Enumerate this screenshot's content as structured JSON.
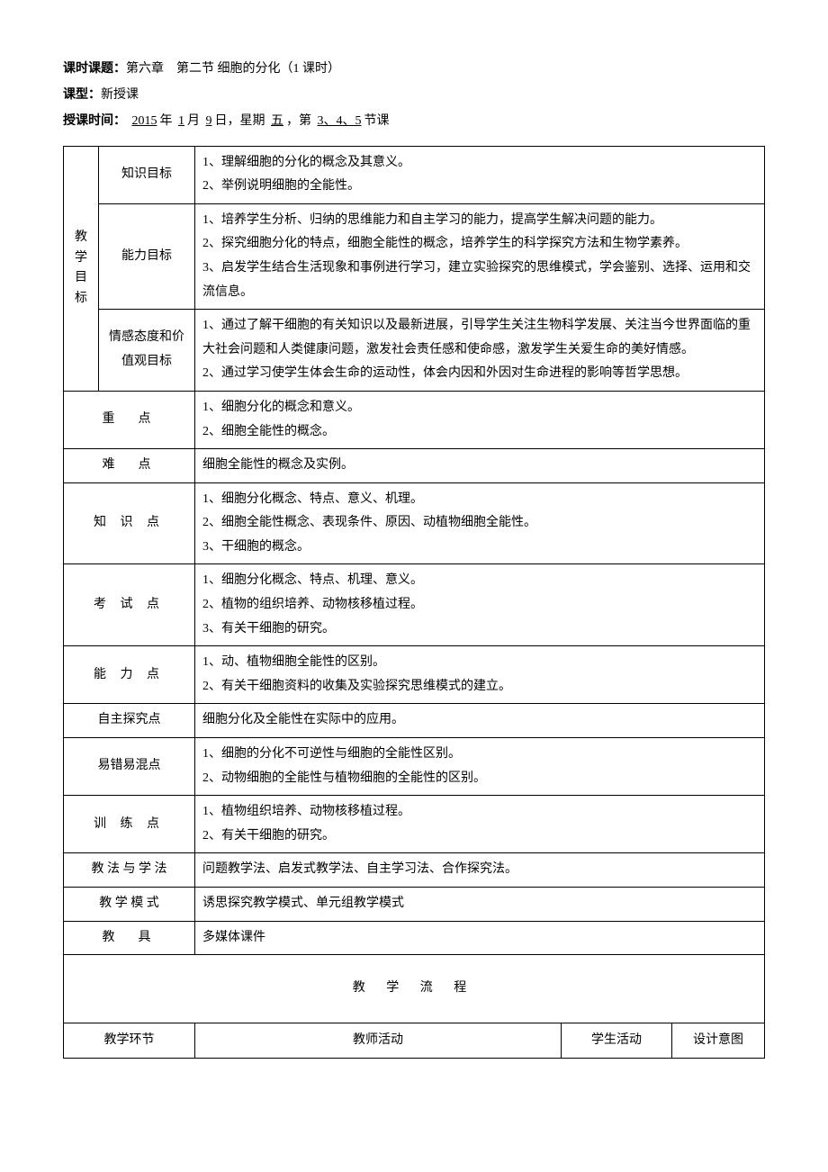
{
  "header": {
    "topic_label": "课时课题：",
    "topic_value": "第六章　第二节 细胞的分化（1 课时）",
    "type_label": "课型：",
    "type_value": "新授课",
    "time_label": "授课时间：",
    "year": "2015",
    "year_unit": "年",
    "month": "1",
    "month_unit": "月",
    "day": "9",
    "day_unit": "日，星期",
    "weekday": "五",
    "sep": "，第",
    "periods": "3、4、5",
    "period_unit": "节课"
  },
  "objectives": {
    "title": "教学目标",
    "rows": [
      {
        "label": "知识目标",
        "content": "1、理解细胞的分化的概念及其意义。\n2、举例说明细胞的全能性。"
      },
      {
        "label": "能力目标",
        "content": "1、培养学生分析、归纳的思维能力和自主学习的能力，提高学生解决问题的能力。\n2、探究细胞分化的特点，细胞全能性的概念，培养学生的科学探究方法和生物学素养。\n3、启发学生结合生活现象和事例进行学习，建立实验探究的思维模式，学会鉴别、选择、运用和交流信息。"
      },
      {
        "label": "情感态度和价值观目标",
        "content": "1、通过了解干细胞的有关知识以及最新进展，引导学生关注生物科学发展、关注当今世界面临的重大社会问题和人类健康问题，激发社会责任感和使命感，激发学生关爱生命的美好情感。\n2、通过学习使学生体会生命的运动性，体会内因和外因对生命进程的影响等哲学思想。"
      }
    ]
  },
  "rows": [
    {
      "label": "重　点",
      "spaced": true,
      "content": "1、细胞分化的概念和意义。\n2、细胞全能性的概念。"
    },
    {
      "label": "难　点",
      "spaced": true,
      "content": "细胞全能性的概念及实例。"
    },
    {
      "label": "知 识 点",
      "spaced": true,
      "content": "1、细胞分化概念、特点、意义、机理。\n2、细胞全能性概念、表现条件、原因、动植物细胞全能性。\n3、干细胞的概念。"
    },
    {
      "label": "考 试 点",
      "spaced": true,
      "content": "1、细胞分化概念、特点、机理、意义。\n2、植物的组织培养、动物核移植过程。\n3、有关干细胞的研究。"
    },
    {
      "label": "能 力 点",
      "spaced": true,
      "content": "1、动、植物细胞全能性的区别。\n2、有关干细胞资料的收集及实验探究思维模式的建立。"
    },
    {
      "label": "自主探究点",
      "spaced": false,
      "content": "细胞分化及全能性在实际中的应用。"
    },
    {
      "label": "易错易混点",
      "spaced": false,
      "content": "1、细胞的分化不可逆性与细胞的全能性区别。\n2、动物细胞的全能性与植物细胞的全能性的区别。"
    },
    {
      "label": "训 练 点",
      "spaced": true,
      "content": "1、植物组织培养、动物核移植过程。\n2、有关干细胞的研究。"
    },
    {
      "label": "教 法 与 学 法",
      "spaced": false,
      "content": "问题教学法、启发式教学法、自主学习法、合作探究法。"
    },
    {
      "label": "教 学 模 式",
      "spaced": false,
      "content": "诱思探究教学模式、单元组教学模式"
    },
    {
      "label": "教　具",
      "spaced": true,
      "content": "多媒体课件"
    }
  ],
  "flow": {
    "title": "教 学 流 程",
    "columns": [
      "教学环节",
      "教师活动",
      "学生活动",
      "设计意图"
    ]
  }
}
